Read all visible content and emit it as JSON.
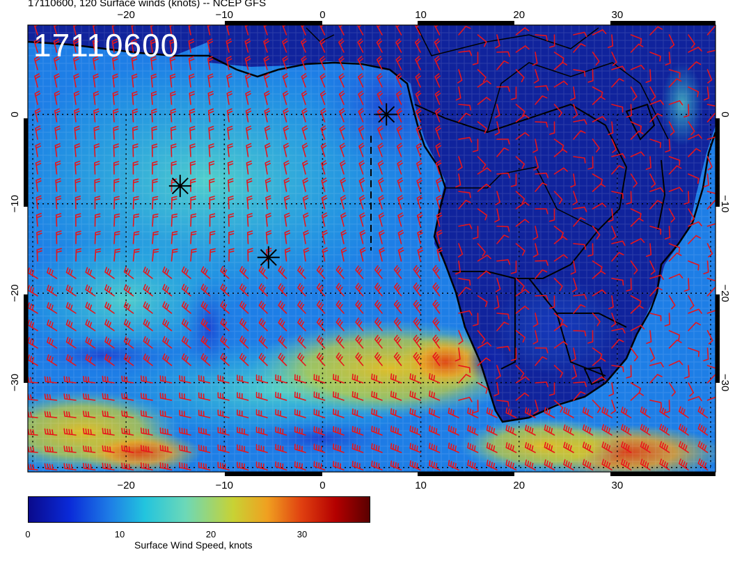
{
  "title": "17110600, 120 Surface winds (knots) -- NCEP GFS",
  "date_stamp": "17110600",
  "map": {
    "lon_range": [
      -30,
      40
    ],
    "lat_range": [
      -40,
      10
    ],
    "longitude_ticks": [
      "−20",
      "−10",
      "0",
      "10",
      "20",
      "30"
    ],
    "latitude_ticks": [
      "0",
      "−10",
      "−20",
      "−30"
    ],
    "barb_color": "#e8141a",
    "coastline_color": "#000000",
    "markers": [
      {
        "symbol": "asterisk",
        "lon": 6.5,
        "lat": 0.0
      },
      {
        "symbol": "asterisk",
        "lon": -14.5,
        "lat": -8.0
      },
      {
        "symbol": "asterisk",
        "lon": -5.5,
        "lat": -16.0
      }
    ]
  },
  "colorbar": {
    "label": "Surface Wind Speed, knots",
    "ticks": [
      "0",
      "10",
      "20",
      "30"
    ],
    "range": [
      0,
      37
    ],
    "colors": [
      "#0a0a8c",
      "#0a2ad8",
      "#1e7ee6",
      "#22c4de",
      "#6cd8b8",
      "#c8d234",
      "#f0a020",
      "#e04010",
      "#b40000",
      "#5a0000"
    ]
  }
}
